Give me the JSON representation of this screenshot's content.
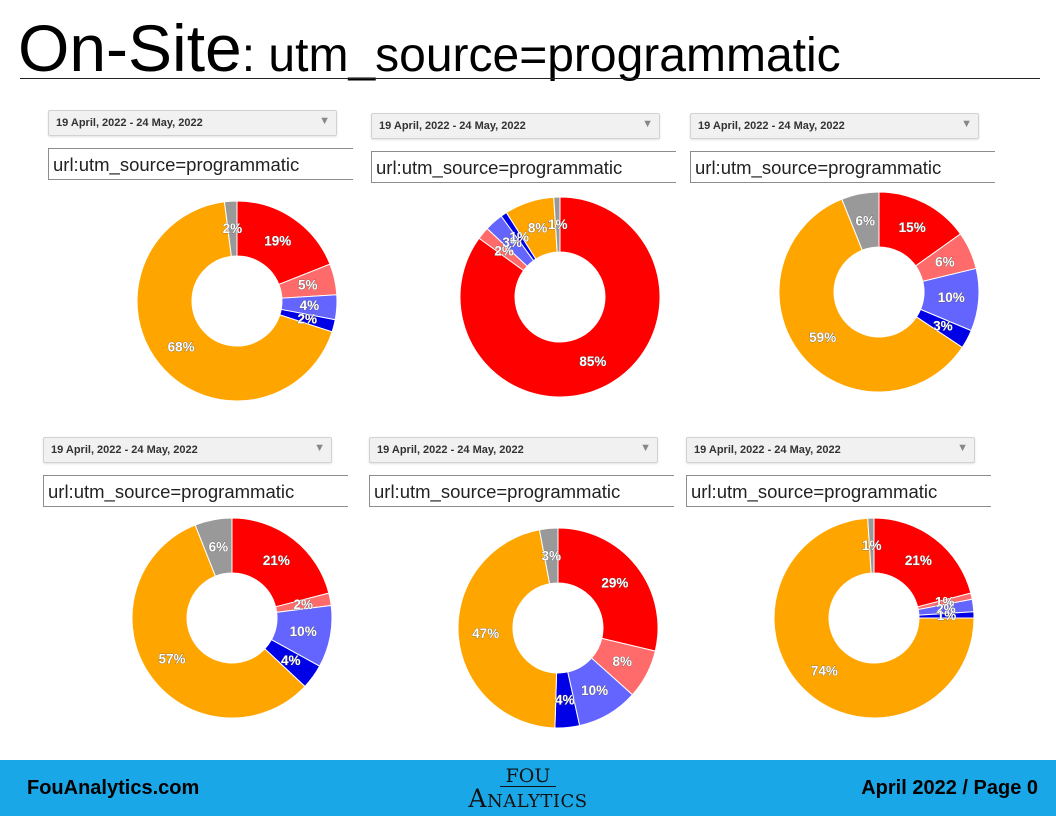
{
  "title": {
    "main": "On-Site",
    "sub": ": utm_source=programmatic"
  },
  "footer": {
    "site": "FouAnalytics.com",
    "logo_top": "FOU",
    "logo_bottom": "Analytics",
    "page": "April 2022 / Page 0"
  },
  "colors": {
    "red": "#ff0000",
    "light_red": "#ff6b6b",
    "periwinkle": "#6464ff",
    "blue": "#0000e6",
    "orange": "#ffa500",
    "gray": "#999999",
    "footer_bg": "#1aa7e8"
  },
  "panels": [
    {
      "date_range": "19 April, 2022 - 24 May, 2022",
      "query": "url:utm_source=programmatic",
      "dropdown_icon": "chevron-down-icon"
    },
    {
      "date_range": "19 April, 2022 - 24 May, 2022",
      "query": "url:utm_source=programmatic",
      "dropdown_icon": "chevron-down-icon"
    },
    {
      "date_range": "19 April, 2022 - 24 May, 2022",
      "query": "url:utm_source=programmatic",
      "dropdown_icon": "chevron-down-icon"
    },
    {
      "date_range": "19 April, 2022 - 24 May, 2022",
      "query": "url:utm_source=programmatic",
      "dropdown_icon": "chevron-down-icon"
    },
    {
      "date_range": "19 April, 2022 - 24 May, 2022",
      "query": "url:utm_source=programmatic",
      "dropdown_icon": "chevron-down-icon"
    },
    {
      "date_range": "19 April, 2022 - 24 May, 2022",
      "query": "url:utm_source=programmatic",
      "dropdown_icon": "chevron-down-icon"
    }
  ],
  "chart_data": [
    {
      "type": "pie",
      "donut": true,
      "legend": "none",
      "slices": [
        {
          "value": 19,
          "label": "19%",
          "color": "#ff0000"
        },
        {
          "value": 5,
          "label": "5%",
          "color": "#ff6b6b"
        },
        {
          "value": 4,
          "label": "4%",
          "color": "#6464ff"
        },
        {
          "value": 2,
          "label": "2%",
          "color": "#0000e6"
        },
        {
          "value": 68,
          "label": "68%",
          "color": "#ffa500"
        },
        {
          "value": 2,
          "label": "2%",
          "color": "#999999"
        }
      ]
    },
    {
      "type": "pie",
      "donut": true,
      "legend": "none",
      "slices": [
        {
          "value": 85,
          "label": "85%",
          "color": "#ff0000"
        },
        {
          "value": 2,
          "label": "2%",
          "color": "#ff6b6b"
        },
        {
          "value": 3,
          "label": "3%",
          "color": "#6464ff"
        },
        {
          "value": 1,
          "label": "1%",
          "color": "#0000e6"
        },
        {
          "value": 8,
          "label": "8%",
          "color": "#ffa500"
        },
        {
          "value": 1,
          "label": "1%",
          "color": "#999999"
        }
      ]
    },
    {
      "type": "pie",
      "donut": true,
      "legend": "none",
      "slices": [
        {
          "value": 15,
          "label": "15%",
          "color": "#ff0000"
        },
        {
          "value": 6,
          "label": "6%",
          "color": "#ff6b6b"
        },
        {
          "value": 10,
          "label": "10%",
          "color": "#6464ff"
        },
        {
          "value": 3,
          "label": "3%",
          "color": "#0000e6"
        },
        {
          "value": 59,
          "label": "59%",
          "color": "#ffa500"
        },
        {
          "value": 6,
          "label": "6%",
          "color": "#999999"
        }
      ]
    },
    {
      "type": "pie",
      "donut": true,
      "legend": "none",
      "slices": [
        {
          "value": 21,
          "label": "21%",
          "color": "#ff0000"
        },
        {
          "value": 2,
          "label": "2%",
          "color": "#ff6b6b"
        },
        {
          "value": 10,
          "label": "10%",
          "color": "#6464ff"
        },
        {
          "value": 4,
          "label": "4%",
          "color": "#0000e6"
        },
        {
          "value": 57,
          "label": "57%",
          "color": "#ffa500"
        },
        {
          "value": 6,
          "label": "6%",
          "color": "#999999"
        }
      ]
    },
    {
      "type": "pie",
      "donut": true,
      "legend": "none",
      "slices": [
        {
          "value": 29,
          "label": "29%",
          "color": "#ff0000"
        },
        {
          "value": 8,
          "label": "8%",
          "color": "#ff6b6b"
        },
        {
          "value": 10,
          "label": "10%",
          "color": "#6464ff"
        },
        {
          "value": 4,
          "label": "4%",
          "color": "#0000e6"
        },
        {
          "value": 47,
          "label": "47%",
          "color": "#ffa500"
        },
        {
          "value": 3,
          "label": "3%",
          "color": "#999999"
        }
      ]
    },
    {
      "type": "pie",
      "donut": true,
      "legend": "none",
      "slices": [
        {
          "value": 21,
          "label": "21%",
          "color": "#ff0000"
        },
        {
          "value": 1,
          "label": "1%",
          "color": "#ff6b6b"
        },
        {
          "value": 2,
          "label": "2%",
          "color": "#6464ff"
        },
        {
          "value": 1,
          "label": "1%",
          "color": "#0000e6"
        },
        {
          "value": 74,
          "label": "74%",
          "color": "#ffa500"
        },
        {
          "value": 1,
          "label": "1%",
          "color": "#999999"
        }
      ]
    }
  ]
}
